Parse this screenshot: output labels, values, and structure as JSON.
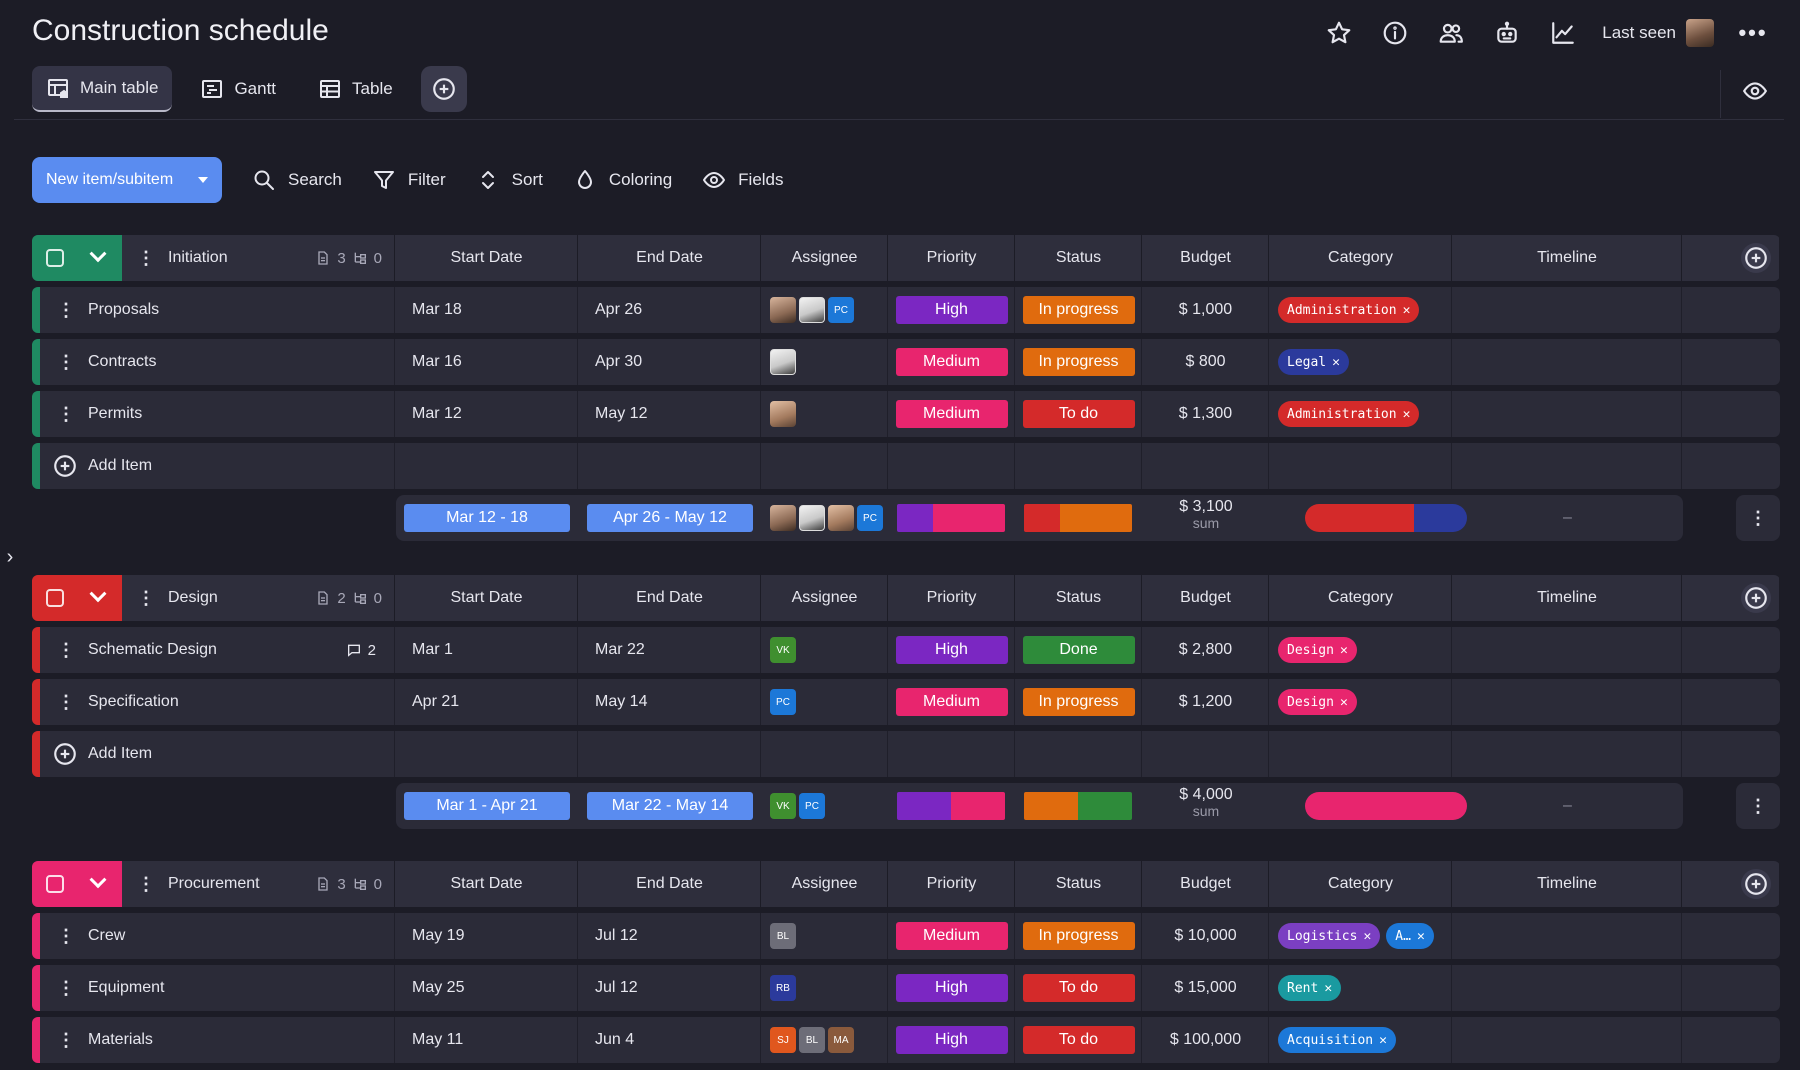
{
  "header": {
    "title": "Construction schedule",
    "last_seen_label": "Last seen",
    "icons": [
      "star-icon",
      "info-icon",
      "people-icon",
      "robot-icon",
      "chart-icon",
      "more-icon"
    ]
  },
  "views": [
    {
      "label": "Main table",
      "icon": "table-home-icon",
      "active": true
    },
    {
      "label": "Gantt",
      "icon": "gantt-icon",
      "active": false
    },
    {
      "label": "Table",
      "icon": "table-icon",
      "active": false
    }
  ],
  "toolbar": {
    "new_item_label": "New item/subitem",
    "search_label": "Search",
    "filter_label": "Filter",
    "sort_label": "Sort",
    "coloring_label": "Coloring",
    "fields_label": "Fields"
  },
  "columns": [
    "Start Date",
    "End Date",
    "Assignee",
    "Priority",
    "Status",
    "Budget",
    "Category",
    "Timeline"
  ],
  "add_item_label": "Add Item",
  "groups": [
    {
      "name": "Initiation",
      "color": "#1f8a62",
      "docs_count": "3",
      "subitems_count": "0",
      "items": [
        {
          "name": "Proposals",
          "start": "Mar 18",
          "end": "Apr 26",
          "assignees": [
            {
              "type": "photo1"
            },
            {
              "type": "photo2"
            },
            {
              "type": "initials",
              "text": "PC",
              "color": "#1c78d8"
            }
          ],
          "priority": "High",
          "status": "In progress",
          "budget": "$ 1,000",
          "tags": [
            {
              "text": "Administration",
              "color": "#d42a2a"
            }
          ]
        },
        {
          "name": "Contracts",
          "start": "Mar 16",
          "end": "Apr 30",
          "assignees": [
            {
              "type": "photo2"
            }
          ],
          "priority": "Medium",
          "status": "In progress",
          "budget": "$ 800",
          "tags": [
            {
              "text": "Legal",
              "color": "#2b3a9c"
            }
          ]
        },
        {
          "name": "Permits",
          "start": "Mar 12",
          "end": "May 12",
          "assignees": [
            {
              "type": "photo3"
            }
          ],
          "priority": "Medium",
          "status": "To do",
          "budget": "$ 1,300",
          "tags": [
            {
              "text": "Administration",
              "color": "#d42a2a"
            }
          ]
        }
      ],
      "summary": {
        "start_range": "Mar 12 - 18",
        "end_range": "Apr 26 - May 12",
        "assignees": [
          {
            "type": "photo1"
          },
          {
            "type": "photo2"
          },
          {
            "type": "photo3"
          },
          {
            "type": "initials",
            "text": "PC",
            "color": "#1c78d8"
          }
        ],
        "priority_split": [
          {
            "color": "#7b27c2",
            "frac": 0.33
          },
          {
            "color": "#e8256e",
            "frac": 0.67
          }
        ],
        "status_split": [
          {
            "color": "#d42a2a",
            "frac": 0.33
          },
          {
            "color": "#e06b0e",
            "frac": 0.67
          }
        ],
        "budget": "$ 3,100",
        "budget_sub": "sum",
        "category_split": [
          {
            "color": "#d42a2a",
            "frac": 0.67
          },
          {
            "color": "#2b3a9c",
            "frac": 0.33
          }
        ],
        "timeline": "–"
      }
    },
    {
      "name": "Design",
      "color": "#d42a2a",
      "docs_count": "2",
      "subitems_count": "0",
      "items": [
        {
          "name": "Schematic Design",
          "comments": "2",
          "start": "Mar 1",
          "end": "Mar 22",
          "assignees": [
            {
              "type": "initials",
              "text": "VK",
              "color": "#3f8f2f"
            }
          ],
          "priority": "High",
          "status": "Done",
          "budget": "$ 2,800",
          "tags": [
            {
              "text": "Design",
              "color": "#e8256e"
            }
          ]
        },
        {
          "name": "Specification",
          "start": "Apr 21",
          "end": "May 14",
          "assignees": [
            {
              "type": "initials",
              "text": "PC",
              "color": "#1c78d8"
            }
          ],
          "priority": "Medium",
          "status": "In progress",
          "budget": "$ 1,200",
          "tags": [
            {
              "text": "Design",
              "color": "#e8256e"
            }
          ]
        }
      ],
      "summary": {
        "start_range": "Mar 1 - Apr 21",
        "end_range": "Mar 22 - May 14",
        "assignees": [
          {
            "type": "initials",
            "text": "VK",
            "color": "#3f8f2f"
          },
          {
            "type": "initials",
            "text": "PC",
            "color": "#1c78d8"
          }
        ],
        "priority_split": [
          {
            "color": "#7b27c2",
            "frac": 0.5
          },
          {
            "color": "#e8256e",
            "frac": 0.5
          }
        ],
        "status_split": [
          {
            "color": "#e06b0e",
            "frac": 0.5
          },
          {
            "color": "#2e8b3a",
            "frac": 0.5
          }
        ],
        "budget": "$ 4,000",
        "budget_sub": "sum",
        "category_split": [
          {
            "color": "#e8256e",
            "frac": 1.0
          }
        ],
        "timeline": "–"
      }
    },
    {
      "name": "Procurement",
      "color": "#e8256e",
      "docs_count": "3",
      "subitems_count": "0",
      "items": [
        {
          "name": "Crew",
          "start": "May 19",
          "end": "Jul 12",
          "assignees": [
            {
              "type": "initials",
              "text": "BL",
              "color": "#6d6d78"
            }
          ],
          "priority": "Medium",
          "status": "In progress",
          "budget": "$ 10,000",
          "tags": [
            {
              "text": "Logistics",
              "color": "#7b3fc2"
            },
            {
              "text": "A…",
              "color": "#1c78d8"
            }
          ]
        },
        {
          "name": "Equipment",
          "start": "May 25",
          "end": "Jul 12",
          "assignees": [
            {
              "type": "initials",
              "text": "RB",
              "color": "#2b3a9c"
            }
          ],
          "priority": "High",
          "status": "To do",
          "budget": "$ 15,000",
          "tags": [
            {
              "text": "Rent",
              "color": "#1a9aa0"
            }
          ]
        },
        {
          "name": "Materials",
          "start": "May 11",
          "end": "Jun 4",
          "assignees": [
            {
              "type": "initials",
              "text": "SJ",
              "color": "#e0571e"
            },
            {
              "type": "initials",
              "text": "BL",
              "color": "#6d6d78"
            },
            {
              "type": "initials",
              "text": "MA",
              "color": "#8a5a3c"
            }
          ],
          "priority": "High",
          "status": "To do",
          "budget": "$ 100,000",
          "tags": [
            {
              "text": "Acquisition",
              "color": "#1c78d8"
            }
          ]
        }
      ]
    }
  ],
  "colors": {
    "High": "#7b27c2",
    "Medium": "#e8256e",
    "In progress": "#e06b0e",
    "To do": "#d42a2a",
    "Done": "#2e8b3a",
    "accent": "#5a8cf0"
  }
}
